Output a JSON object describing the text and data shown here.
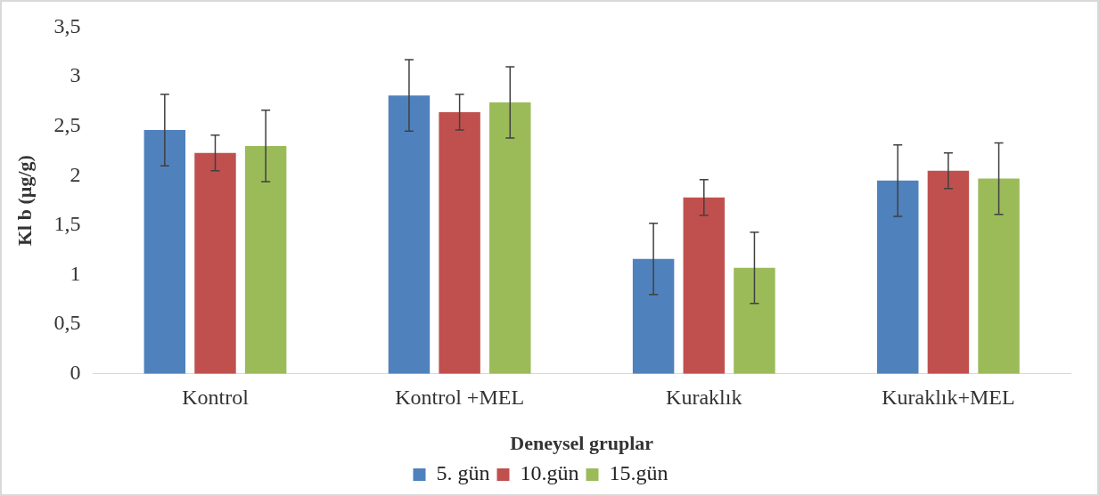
{
  "chart_data": {
    "type": "bar",
    "xlabel": "Deneysel gruplar",
    "ylabel": "Kl b (µg/g)",
    "categories": [
      "Kontrol",
      "Kontrol +MEL",
      "Kuraklık",
      "Kuraklık+MEL"
    ],
    "series": [
      {
        "name": "5. gün",
        "color": "#4f81bd",
        "values": [
          2.46,
          2.81,
          1.16,
          1.95
        ],
        "errors": [
          0.36,
          0.36,
          0.36,
          0.36
        ]
      },
      {
        "name": "10.gün",
        "color": "#c0504d",
        "values": [
          2.23,
          2.64,
          1.78,
          2.05
        ],
        "errors": [
          0.18,
          0.18,
          0.18,
          0.18
        ]
      },
      {
        "name": "15.gün",
        "color": "#9bbb59",
        "values": [
          2.3,
          2.74,
          1.07,
          1.97
        ],
        "errors": [
          0.36,
          0.36,
          0.36,
          0.36
        ]
      }
    ],
    "ylim": [
      0,
      3.5
    ],
    "yticks": [
      0,
      {
        "value": 0.5,
        "label": "0,5"
      },
      1,
      {
        "value": 1.5,
        "label": "1,5"
      },
      2,
      {
        "value": 2.5,
        "label": "2,5"
      },
      3,
      {
        "value": 3.5,
        "label": "3,5"
      }
    ],
    "grid": false,
    "legend": "bottom"
  }
}
